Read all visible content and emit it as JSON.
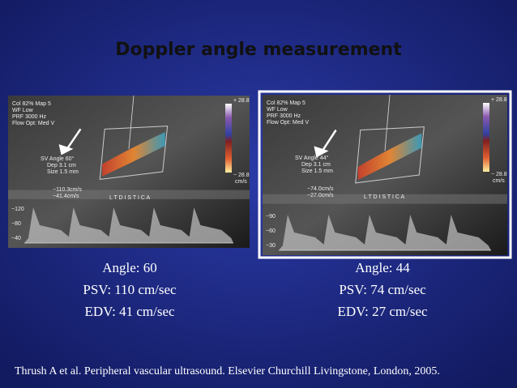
{
  "title": "Doppler angle measurement",
  "panels": [
    {
      "image": {
        "settings": [
          "Col 82%  Map 5",
          "WF Low",
          "PRF 3000  Hz",
          "Flow Opt: Med V"
        ],
        "sample_volume": [
          "SV Angle 60°",
          "Dep 3.1  cm",
          "Size 1.5  mm"
        ],
        "velocities": [
          "−110.3cm/s",
          "−41.4cm/s"
        ],
        "vessel_label": "L T   D I S T   I C A",
        "scale_top": "+ 28.8",
        "scale_bottom": "− 28.8",
        "scale_unit": "cm/s",
        "axis_labels": [
          "−120",
          "−80",
          "−40"
        ]
      },
      "caption": [
        "Angle: 60",
        "PSV: 110 cm/sec",
        "EDV: 41 cm/sec"
      ]
    },
    {
      "image": {
        "settings": [
          "Col 82%  Map 5",
          "WF Low",
          "PRF 3000  Hz",
          "Flow Opt: Med V"
        ],
        "sample_volume": [
          "SV Angle 44°",
          "Dep 3.1  cm",
          "Size 1.5  mm"
        ],
        "velocities": [
          "−74.0cm/s",
          "−27.0cm/s"
        ],
        "vessel_label": "L T   D I S T   I C A",
        "scale_top": "+ 28.8",
        "scale_bottom": "− 28.8",
        "scale_unit": "cm/s",
        "axis_labels": [
          "−90",
          "−60",
          "−30"
        ]
      },
      "caption": [
        "Angle: 44",
        "PSV: 74 cm/sec",
        "EDV: 27 cm/sec"
      ]
    }
  ],
  "citation": "Thrush A et al. Peripheral vascular ultrasound. Elsevier Churchill Livingstone, London,  2005."
}
